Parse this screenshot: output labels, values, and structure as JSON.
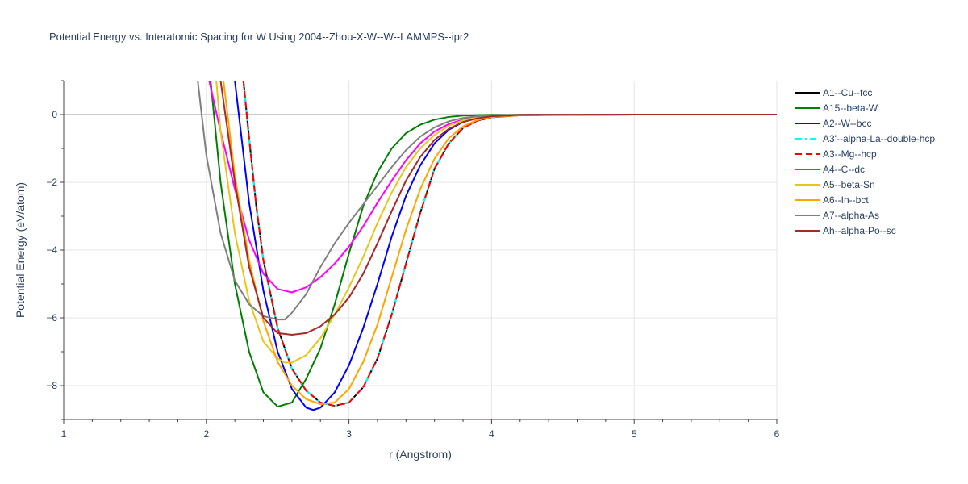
{
  "chart_data": {
    "type": "line",
    "title": "Potential Energy vs. Interatomic Spacing for W Using 2004--Zhou-X-W--W--LAMMPS--ipr2",
    "xlabel": "r (Angstrom)",
    "ylabel": "Potential Energy (eV/atom)",
    "xlim": [
      1,
      6
    ],
    "ylim": [
      -9,
      1
    ],
    "x_ticks": [
      1,
      2,
      3,
      4,
      5,
      6
    ],
    "y_ticks": [
      0,
      -2,
      -4,
      -6,
      -8
    ],
    "x_tick_labels": [
      "1",
      "2",
      "3",
      "4",
      "5",
      "6"
    ],
    "y_tick_labels": [
      "0",
      "−2",
      "−4",
      "−6",
      "−8"
    ],
    "grid": true,
    "legend_position": "right",
    "series": [
      {
        "name": "A1--Cu--fcc",
        "color": "#000000",
        "dash": "solid",
        "points": [
          [
            2.26,
            1.0
          ],
          [
            2.3,
            -0.7
          ],
          [
            2.35,
            -2.7
          ],
          [
            2.4,
            -4.3
          ],
          [
            2.5,
            -6.3
          ],
          [
            2.6,
            -7.5
          ],
          [
            2.7,
            -8.15
          ],
          [
            2.8,
            -8.5
          ],
          [
            2.9,
            -8.6
          ],
          [
            3.0,
            -8.5
          ],
          [
            3.1,
            -8.05
          ],
          [
            3.2,
            -7.2
          ],
          [
            3.3,
            -5.9
          ],
          [
            3.4,
            -4.4
          ],
          [
            3.5,
            -2.9
          ],
          [
            3.6,
            -1.6
          ],
          [
            3.7,
            -0.85
          ],
          [
            3.8,
            -0.4
          ],
          [
            3.9,
            -0.18
          ],
          [
            4.0,
            -0.08
          ],
          [
            4.2,
            -0.02
          ],
          [
            4.5,
            -0.005
          ],
          [
            5.0,
            0
          ],
          [
            6.0,
            0
          ]
        ]
      },
      {
        "name": "A15--beta-W",
        "color": "#008000",
        "dash": "solid",
        "points": [
          [
            2.03,
            1.0
          ],
          [
            2.1,
            -2.0
          ],
          [
            2.2,
            -5.0
          ],
          [
            2.3,
            -7.0
          ],
          [
            2.4,
            -8.2
          ],
          [
            2.5,
            -8.62
          ],
          [
            2.6,
            -8.5
          ],
          [
            2.7,
            -7.8
          ],
          [
            2.8,
            -6.9
          ],
          [
            2.9,
            -5.6
          ],
          [
            3.0,
            -4.1
          ],
          [
            3.1,
            -2.7
          ],
          [
            3.2,
            -1.7
          ],
          [
            3.3,
            -1.0
          ],
          [
            3.4,
            -0.55
          ],
          [
            3.5,
            -0.3
          ],
          [
            3.6,
            -0.15
          ],
          [
            3.7,
            -0.07
          ],
          [
            3.8,
            -0.03
          ],
          [
            4.0,
            -0.01
          ],
          [
            5.0,
            0
          ],
          [
            6.0,
            0
          ]
        ]
      },
      {
        "name": "A2--W--bcc",
        "color": "#0000ff",
        "dash": "solid",
        "points": [
          [
            2.2,
            1.0
          ],
          [
            2.3,
            -2.6
          ],
          [
            2.4,
            -5.2
          ],
          [
            2.5,
            -7.0
          ],
          [
            2.6,
            -8.1
          ],
          [
            2.7,
            -8.65
          ],
          [
            2.75,
            -8.72
          ],
          [
            2.8,
            -8.65
          ],
          [
            2.9,
            -8.2
          ],
          [
            3.0,
            -7.4
          ],
          [
            3.1,
            -6.3
          ],
          [
            3.2,
            -5.0
          ],
          [
            3.3,
            -3.6
          ],
          [
            3.4,
            -2.4
          ],
          [
            3.5,
            -1.5
          ],
          [
            3.6,
            -0.85
          ],
          [
            3.7,
            -0.45
          ],
          [
            3.8,
            -0.22
          ],
          [
            3.9,
            -0.1
          ],
          [
            4.0,
            -0.05
          ],
          [
            4.2,
            -0.01
          ],
          [
            5.0,
            0
          ],
          [
            6.0,
            0
          ]
        ]
      },
      {
        "name": "A3'--alpha-La--double-hcp",
        "color": "#00ffff",
        "dash": "dashdot",
        "points": [
          [
            2.26,
            1.0
          ],
          [
            2.3,
            -0.7
          ],
          [
            2.35,
            -2.7
          ],
          [
            2.4,
            -4.3
          ],
          [
            2.5,
            -6.3
          ],
          [
            2.6,
            -7.5
          ],
          [
            2.7,
            -8.15
          ],
          [
            2.8,
            -8.5
          ],
          [
            2.9,
            -8.6
          ],
          [
            3.0,
            -8.5
          ],
          [
            3.1,
            -8.05
          ],
          [
            3.2,
            -7.2
          ],
          [
            3.3,
            -5.9
          ],
          [
            3.4,
            -4.4
          ],
          [
            3.5,
            -2.9
          ],
          [
            3.6,
            -1.6
          ],
          [
            3.7,
            -0.85
          ],
          [
            3.8,
            -0.4
          ],
          [
            3.9,
            -0.18
          ],
          [
            4.0,
            -0.08
          ],
          [
            4.2,
            -0.02
          ],
          [
            4.5,
            -0.005
          ],
          [
            5.0,
            0
          ],
          [
            6.0,
            0
          ]
        ]
      },
      {
        "name": "A3--Mg--hcp",
        "color": "#ff0000",
        "dash": "dash",
        "points": [
          [
            2.26,
            1.0
          ],
          [
            2.3,
            -0.7
          ],
          [
            2.35,
            -2.7
          ],
          [
            2.4,
            -4.3
          ],
          [
            2.5,
            -6.3
          ],
          [
            2.6,
            -7.5
          ],
          [
            2.7,
            -8.15
          ],
          [
            2.8,
            -8.5
          ],
          [
            2.9,
            -8.6
          ],
          [
            3.0,
            -8.5
          ],
          [
            3.1,
            -8.05
          ],
          [
            3.2,
            -7.2
          ],
          [
            3.3,
            -5.9
          ],
          [
            3.4,
            -4.4
          ],
          [
            3.5,
            -2.9
          ],
          [
            3.6,
            -1.6
          ],
          [
            3.7,
            -0.85
          ],
          [
            3.8,
            -0.4
          ],
          [
            3.9,
            -0.18
          ],
          [
            4.0,
            -0.08
          ],
          [
            4.2,
            -0.02
          ],
          [
            4.5,
            -0.005
          ],
          [
            5.0,
            0
          ],
          [
            6.0,
            0
          ]
        ]
      },
      {
        "name": "A4--C--dc",
        "color": "#ff00ff",
        "dash": "solid",
        "points": [
          [
            2.02,
            1.0
          ],
          [
            2.1,
            -0.5
          ],
          [
            2.2,
            -2.2
          ],
          [
            2.3,
            -3.7
          ],
          [
            2.4,
            -4.7
          ],
          [
            2.5,
            -5.15
          ],
          [
            2.6,
            -5.25
          ],
          [
            2.7,
            -5.1
          ],
          [
            2.8,
            -4.8
          ],
          [
            2.9,
            -4.4
          ],
          [
            3.0,
            -3.9
          ],
          [
            3.1,
            -3.3
          ],
          [
            3.2,
            -2.6
          ],
          [
            3.3,
            -1.95
          ],
          [
            3.4,
            -1.35
          ],
          [
            3.5,
            -0.85
          ],
          [
            3.6,
            -0.5
          ],
          [
            3.7,
            -0.28
          ],
          [
            3.8,
            -0.15
          ],
          [
            3.9,
            -0.07
          ],
          [
            4.0,
            -0.03
          ],
          [
            4.2,
            -0.01
          ],
          [
            5.0,
            0
          ],
          [
            6.0,
            0
          ]
        ]
      },
      {
        "name": "A5--beta-Sn",
        "color": "#e6c619",
        "dash": "solid",
        "points": [
          [
            2.07,
            1.0
          ],
          [
            2.1,
            -0.5
          ],
          [
            2.2,
            -3.5
          ],
          [
            2.3,
            -5.5
          ],
          [
            2.4,
            -6.7
          ],
          [
            2.5,
            -7.2
          ],
          [
            2.55,
            -7.32
          ],
          [
            2.6,
            -7.32
          ],
          [
            2.7,
            -7.1
          ],
          [
            2.8,
            -6.6
          ],
          [
            2.9,
            -5.9
          ],
          [
            3.0,
            -5.1
          ],
          [
            3.1,
            -4.2
          ],
          [
            3.2,
            -3.2
          ],
          [
            3.3,
            -2.3
          ],
          [
            3.4,
            -1.55
          ],
          [
            3.5,
            -1.0
          ],
          [
            3.6,
            -0.6
          ],
          [
            3.7,
            -0.33
          ],
          [
            3.8,
            -0.17
          ],
          [
            3.9,
            -0.08
          ],
          [
            4.0,
            -0.04
          ],
          [
            4.2,
            -0.01
          ],
          [
            5.0,
            0
          ],
          [
            6.0,
            0
          ]
        ]
      },
      {
        "name": "A6--In--bct",
        "color": "#ffa500",
        "dash": "solid",
        "points": [
          [
            2.12,
            1.0
          ],
          [
            2.2,
            -1.8
          ],
          [
            2.3,
            -4.3
          ],
          [
            2.4,
            -6.1
          ],
          [
            2.5,
            -7.3
          ],
          [
            2.6,
            -8.0
          ],
          [
            2.7,
            -8.4
          ],
          [
            2.8,
            -8.55
          ],
          [
            2.9,
            -8.5
          ],
          [
            3.0,
            -8.1
          ],
          [
            3.1,
            -7.3
          ],
          [
            3.2,
            -6.2
          ],
          [
            3.3,
            -4.8
          ],
          [
            3.4,
            -3.4
          ],
          [
            3.5,
            -2.2
          ],
          [
            3.6,
            -1.3
          ],
          [
            3.7,
            -0.7
          ],
          [
            3.8,
            -0.35
          ],
          [
            3.9,
            -0.16
          ],
          [
            4.0,
            -0.07
          ],
          [
            4.2,
            -0.02
          ],
          [
            5.0,
            0
          ],
          [
            6.0,
            0
          ]
        ]
      },
      {
        "name": "A7--alpha-As",
        "color": "#808080",
        "dash": "solid",
        "points": [
          [
            1.94,
            1.0
          ],
          [
            2.0,
            -1.2
          ],
          [
            2.1,
            -3.5
          ],
          [
            2.2,
            -4.9
          ],
          [
            2.3,
            -5.6
          ],
          [
            2.4,
            -5.95
          ],
          [
            2.5,
            -6.05
          ],
          [
            2.55,
            -6.05
          ],
          [
            2.6,
            -5.85
          ],
          [
            2.7,
            -5.3
          ],
          [
            2.8,
            -4.5
          ],
          [
            2.9,
            -3.8
          ],
          [
            3.0,
            -3.2
          ],
          [
            3.1,
            -2.65
          ],
          [
            3.2,
            -2.1
          ],
          [
            3.3,
            -1.55
          ],
          [
            3.4,
            -1.05
          ],
          [
            3.5,
            -0.65
          ],
          [
            3.6,
            -0.38
          ],
          [
            3.7,
            -0.2
          ],
          [
            3.8,
            -0.1
          ],
          [
            3.9,
            -0.05
          ],
          [
            4.0,
            -0.02
          ],
          [
            4.2,
            -0.005
          ],
          [
            5.0,
            0
          ],
          [
            6.0,
            0
          ]
        ]
      },
      {
        "name": "Ah--alpha-Po--sc",
        "color": "#a52a2a",
        "dash": "solid",
        "points": [
          [
            2.1,
            1.0
          ],
          [
            2.2,
            -2.0
          ],
          [
            2.3,
            -4.5
          ],
          [
            2.4,
            -6.0
          ],
          [
            2.5,
            -6.45
          ],
          [
            2.6,
            -6.5
          ],
          [
            2.7,
            -6.45
          ],
          [
            2.8,
            -6.25
          ],
          [
            2.9,
            -5.9
          ],
          [
            3.0,
            -5.4
          ],
          [
            3.1,
            -4.7
          ],
          [
            3.2,
            -3.8
          ],
          [
            3.3,
            -2.85
          ],
          [
            3.4,
            -1.95
          ],
          [
            3.5,
            -1.25
          ],
          [
            3.6,
            -0.75
          ],
          [
            3.7,
            -0.42
          ],
          [
            3.8,
            -0.22
          ],
          [
            3.9,
            -0.11
          ],
          [
            4.0,
            -0.05
          ],
          [
            4.2,
            -0.01
          ],
          [
            5.0,
            0
          ],
          [
            6.0,
            0
          ]
        ]
      }
    ]
  }
}
